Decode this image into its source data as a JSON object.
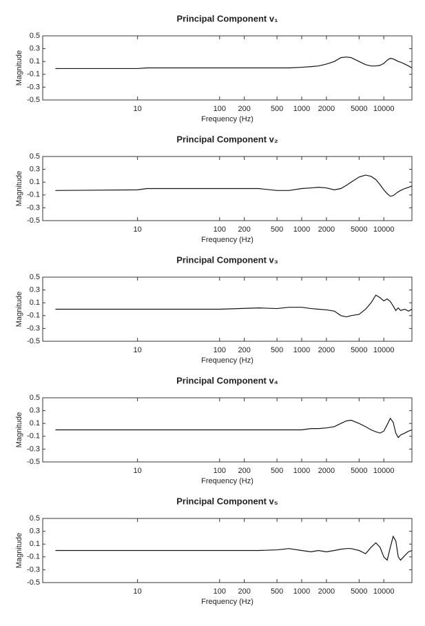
{
  "chart_data": [
    {
      "type": "line",
      "title": "Principal Component v₁",
      "xlabel": "Frequency (Hz)",
      "ylabel": "Magnitude",
      "log_x": true,
      "xlim": [
        0.7,
        22000
      ],
      "xticks": [
        10,
        100,
        200,
        500,
        1000,
        2000,
        5000,
        10000
      ],
      "ylim": [
        -0.5,
        0.5
      ],
      "yticks": [
        0.5,
        0.3,
        0.1,
        -0.1,
        -0.3,
        -0.5
      ],
      "x": [
        1,
        10,
        13,
        100,
        300,
        500,
        700,
        1000,
        1300,
        1600,
        2000,
        2500,
        3000,
        3500,
        4000,
        5000,
        6000,
        7000,
        8000,
        9000,
        10000,
        11000,
        12000,
        13000,
        14000,
        15000,
        16000,
        18000,
        20000,
        22000
      ],
      "series": [
        {
          "color": "#111111",
          "values": [
            -0.01,
            -0.01,
            0.0,
            0.0,
            0.0,
            0.0,
            0.0,
            0.01,
            0.02,
            0.03,
            0.06,
            0.1,
            0.16,
            0.17,
            0.16,
            0.1,
            0.05,
            0.03,
            0.03,
            0.04,
            0.07,
            0.12,
            0.15,
            0.14,
            0.12,
            0.1,
            0.09,
            0.06,
            0.03,
            0.0
          ]
        }
      ]
    },
    {
      "type": "line",
      "title": "Principal Component v₂",
      "xlabel": "Frequency (Hz)",
      "ylabel": "Magnitude",
      "log_x": true,
      "xlim": [
        0.7,
        22000
      ],
      "xticks": [
        10,
        100,
        200,
        500,
        1000,
        2000,
        5000,
        10000
      ],
      "ylim": [
        -0.5,
        0.5
      ],
      "yticks": [
        0.5,
        0.3,
        0.1,
        -0.1,
        -0.3,
        -0.5
      ],
      "x": [
        1,
        10,
        13,
        100,
        300,
        500,
        700,
        1000,
        1300,
        1600,
        2000,
        2500,
        3000,
        3500,
        4000,
        5000,
        6000,
        7000,
        8000,
        9000,
        10000,
        11000,
        12000,
        13000,
        14000,
        15000,
        16000,
        18000,
        20000,
        22000
      ],
      "series": [
        {
          "color": "#111111",
          "values": [
            -0.03,
            -0.02,
            0.0,
            0.0,
            0.0,
            -0.03,
            -0.03,
            0.0,
            0.01,
            0.02,
            0.01,
            -0.02,
            0.0,
            0.05,
            0.1,
            0.18,
            0.21,
            0.19,
            0.14,
            0.06,
            -0.02,
            -0.08,
            -0.12,
            -0.11,
            -0.08,
            -0.05,
            -0.03,
            0.0,
            0.02,
            0.04
          ]
        }
      ]
    },
    {
      "type": "line",
      "title": "Principal Component v₃",
      "xlabel": "Frequency (Hz)",
      "ylabel": "Magnitude",
      "log_x": true,
      "xlim": [
        0.7,
        22000
      ],
      "xticks": [
        10,
        100,
        200,
        500,
        1000,
        2000,
        5000,
        10000
      ],
      "ylim": [
        -0.5,
        0.5
      ],
      "yticks": [
        0.5,
        0.3,
        0.1,
        -0.1,
        -0.3,
        -0.5
      ],
      "x": [
        1,
        10,
        13,
        100,
        300,
        500,
        700,
        1000,
        1300,
        1600,
        2000,
        2500,
        3000,
        3500,
        4000,
        5000,
        6000,
        7000,
        8000,
        9000,
        10000,
        11000,
        12000,
        13000,
        14000,
        15000,
        16000,
        18000,
        20000,
        22000
      ],
      "series": [
        {
          "color": "#111111",
          "values": [
            0.0,
            0.0,
            0.0,
            0.0,
            0.02,
            0.01,
            0.03,
            0.03,
            0.01,
            0.0,
            -0.01,
            -0.03,
            -0.1,
            -0.12,
            -0.1,
            -0.08,
            0.0,
            0.1,
            0.22,
            0.18,
            0.13,
            0.16,
            0.12,
            0.05,
            -0.02,
            0.02,
            -0.02,
            0.0,
            -0.03,
            0.0
          ]
        }
      ]
    },
    {
      "type": "line",
      "title": "Principal Component v₄",
      "xlabel": "Frequency (Hz)",
      "ylabel": "Magnitude",
      "log_x": true,
      "xlim": [
        0.7,
        22000
      ],
      "xticks": [
        10,
        100,
        200,
        500,
        1000,
        2000,
        5000,
        10000
      ],
      "ylim": [
        -0.5,
        0.5
      ],
      "yticks": [
        0.5,
        0.3,
        0.1,
        -0.1,
        -0.3,
        -0.5
      ],
      "x": [
        1,
        10,
        13,
        100,
        300,
        500,
        700,
        1000,
        1300,
        1600,
        2000,
        2500,
        3000,
        3500,
        4000,
        5000,
        6000,
        7000,
        8000,
        9000,
        10000,
        11000,
        12000,
        13000,
        14000,
        15000,
        16000,
        18000,
        20000,
        22000
      ],
      "series": [
        {
          "color": "#111111",
          "values": [
            0.0,
            0.0,
            0.0,
            0.0,
            0.0,
            0.0,
            0.0,
            0.0,
            0.02,
            0.02,
            0.03,
            0.05,
            0.1,
            0.14,
            0.15,
            0.1,
            0.05,
            0.0,
            -0.03,
            -0.05,
            -0.02,
            0.08,
            0.18,
            0.12,
            -0.05,
            -0.12,
            -0.08,
            -0.05,
            -0.02,
            0.0
          ]
        }
      ]
    },
    {
      "type": "line",
      "title": "Principal Component v₅",
      "xlabel": "Frequency (Hz)",
      "ylabel": "Magnitude",
      "log_x": true,
      "xlim": [
        0.7,
        22000
      ],
      "xticks": [
        10,
        100,
        200,
        500,
        1000,
        2000,
        5000,
        10000
      ],
      "ylim": [
        -0.5,
        0.5
      ],
      "yticks": [
        0.5,
        0.3,
        0.1,
        -0.1,
        -0.3,
        -0.5
      ],
      "x": [
        1,
        10,
        13,
        100,
        300,
        500,
        700,
        1000,
        1300,
        1600,
        2000,
        2500,
        3000,
        3500,
        4000,
        5000,
        6000,
        7000,
        8000,
        9000,
        10000,
        11000,
        12000,
        13000,
        14000,
        15000,
        16000,
        18000,
        20000,
        22000
      ],
      "series": [
        {
          "color": "#111111",
          "values": [
            0.0,
            0.0,
            0.0,
            0.0,
            0.0,
            0.01,
            0.03,
            0.0,
            -0.02,
            0.0,
            -0.02,
            0.0,
            0.02,
            0.03,
            0.03,
            0.0,
            -0.05,
            0.05,
            0.12,
            0.05,
            -0.1,
            -0.15,
            0.05,
            0.22,
            0.15,
            -0.1,
            -0.15,
            -0.08,
            -0.02,
            0.0
          ]
        }
      ]
    }
  ]
}
